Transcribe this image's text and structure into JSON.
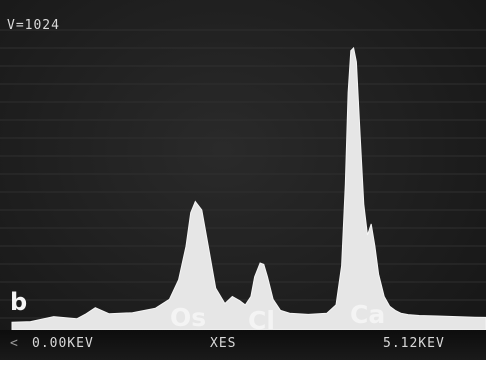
{
  "chart_data": {
    "type": "area",
    "panel_label": "b",
    "vertical_scale": "V=1024",
    "x_axis": {
      "min_label": "0.00KEV",
      "max_label": "5.12KEV",
      "name": "XES",
      "range": [
        0,
        5.12
      ]
    },
    "y_range": [
      0,
      1024
    ],
    "peak_labels": [
      "Os",
      "Cl",
      "Ca"
    ],
    "x": [
      0.0,
      0.2,
      0.45,
      0.7,
      0.8,
      0.9,
      1.05,
      1.3,
      1.55,
      1.7,
      1.8,
      1.88,
      1.93,
      1.98,
      2.05,
      2.12,
      2.2,
      2.3,
      2.38,
      2.46,
      2.52,
      2.58,
      2.62,
      2.68,
      2.72,
      2.76,
      2.82,
      2.9,
      3.0,
      3.2,
      3.4,
      3.5,
      3.56,
      3.6,
      3.63,
      3.66,
      3.69,
      3.72,
      3.76,
      3.8,
      3.84,
      3.88,
      3.92,
      3.96,
      4.02,
      4.08,
      4.14,
      4.2,
      4.28,
      4.4,
      4.6,
      4.8,
      5.0,
      5.12
    ],
    "values": [
      28,
      30,
      48,
      40,
      58,
      80,
      58,
      62,
      78,
      110,
      180,
      300,
      420,
      460,
      430,
      300,
      150,
      95,
      120,
      105,
      90,
      120,
      190,
      240,
      235,
      190,
      110,
      70,
      60,
      56,
      60,
      90,
      230,
      520,
      850,
      1000,
      1010,
      960,
      700,
      450,
      340,
      380,
      300,
      200,
      120,
      85,
      70,
      60,
      55,
      52,
      50,
      48,
      46,
      45
    ]
  }
}
